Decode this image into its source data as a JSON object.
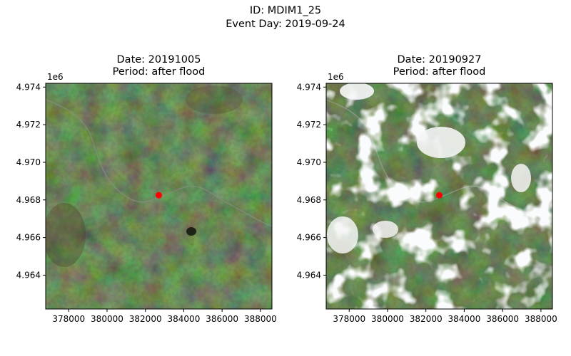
{
  "figure": {
    "suptitle_line1": "ID: MDIM1_25",
    "suptitle_line2": "Event Day: 2019-09-24",
    "colors": {
      "vegetation_dark": "#1f2a15",
      "vegetation_mid": "#2e3d1f",
      "brown_patch": "#4a3a22",
      "river": "#8a8f86",
      "cloud": "#f4f5f5",
      "marker": "#ff0000"
    }
  },
  "chart_data": [
    {
      "type": "scatter",
      "panel": "left",
      "title_line1": "Date: 20191005",
      "title_line2": "Period: after flood",
      "xlabel": "",
      "ylabel": "",
      "y_offset_label": "1e6",
      "xlim": [
        376800,
        388600
      ],
      "ylim": [
        4962200,
        4974200
      ],
      "xticks": [
        378000,
        380000,
        382000,
        384000,
        386000,
        388000
      ],
      "xtick_labels": [
        "378000",
        "380000",
        "382000",
        "384000",
        "386000",
        "388000"
      ],
      "yticks": [
        4964000,
        4966000,
        4968000,
        4970000,
        4972000,
        4974000
      ],
      "ytick_labels": [
        "4.964",
        "4.966",
        "4.968",
        "4.970",
        "4.972",
        "4.974"
      ],
      "grid": false,
      "background": "satellite image (RGB), no clouds",
      "points": [
        {
          "x": 382700,
          "y": 4968250
        }
      ]
    },
    {
      "type": "scatter",
      "panel": "right",
      "title_line1": "Date: 20190927",
      "title_line2": "Period: after flood",
      "xlabel": "",
      "ylabel": "",
      "y_offset_label": "1e6",
      "xlim": [
        376800,
        388600
      ],
      "ylim": [
        4962200,
        4974200
      ],
      "xticks": [
        378000,
        380000,
        382000,
        384000,
        386000,
        388000
      ],
      "xtick_labels": [
        "378000",
        "380000",
        "382000",
        "384000",
        "386000",
        "388000"
      ],
      "yticks": [
        4964000,
        4966000,
        4968000,
        4970000,
        4972000,
        4974000
      ],
      "ytick_labels": [
        "4.964",
        "4.966",
        "4.968",
        "4.970",
        "4.972",
        "4.974"
      ],
      "grid": false,
      "background": "satellite image (RGB), with scattered clouds",
      "points": [
        {
          "x": 382700,
          "y": 4968250
        }
      ]
    }
  ]
}
